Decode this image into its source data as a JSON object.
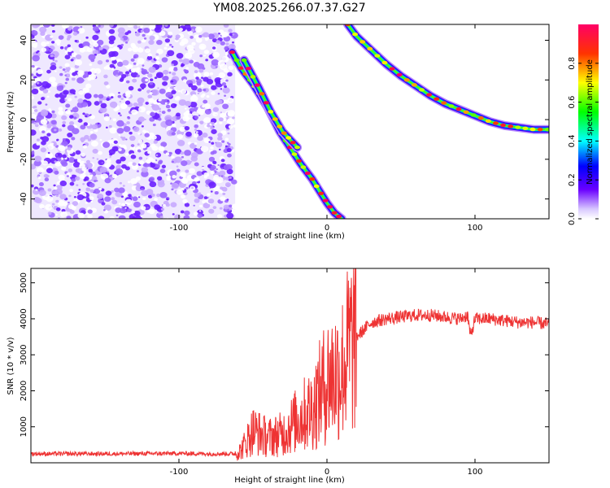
{
  "title": "YM08.2025.266.07.37.G27",
  "chart_data": [
    {
      "type": "heatmap",
      "title": "YM08.2025.266.07.37.G27",
      "xlabel": "Height of straight line (km)",
      "ylabel": "Frequency (Hz)",
      "xlim": [
        -200,
        150
      ],
      "ylim": [
        -50,
        48
      ],
      "xticks": [
        -100,
        0,
        100
      ],
      "yticks": [
        -40,
        -20,
        0,
        20,
        40
      ],
      "colorbar": {
        "label": "Normalized spectral amplitude",
        "range": [
          0,
          1
        ],
        "ticks": [
          "0.0",
          "0.2",
          "0.4",
          "0.6",
          "0.8"
        ]
      },
      "noise_region": {
        "x_start": -200,
        "x_end": -62
      },
      "traces": [
        {
          "points": [
            [
              -64,
              34
            ],
            [
              -58,
              26
            ],
            [
              -50,
              18
            ],
            [
              -40,
              6
            ],
            [
              -32,
              -6
            ],
            [
              -25,
              -14
            ],
            [
              -18,
              -22
            ],
            [
              -10,
              -30
            ],
            [
              -5,
              -36
            ],
            [
              0,
              -42
            ],
            [
              5,
              -47
            ],
            [
              10,
              -50
            ]
          ]
        },
        {
          "points": [
            [
              -56,
              30
            ],
            [
              -46,
              16
            ],
            [
              -38,
              4
            ],
            [
              -30,
              -6
            ],
            [
              -20,
              -14
            ]
          ]
        },
        {
          "points": [
            [
              14,
              48
            ],
            [
              20,
              42
            ],
            [
              30,
              35
            ],
            [
              40,
              28
            ],
            [
              50,
              22
            ],
            [
              60,
              17
            ],
            [
              70,
              12
            ],
            [
              80,
              8
            ],
            [
              90,
              5
            ],
            [
              100,
              2
            ],
            [
              110,
              -1
            ],
            [
              120,
              -3
            ],
            [
              130,
              -4
            ],
            [
              140,
              -5
            ],
            [
              150,
              -5
            ]
          ]
        }
      ]
    },
    {
      "type": "line",
      "xlabel": "Height of straight line (km)",
      "ylabel": "SNR (10 * v/v)",
      "xlim": [
        -200,
        150
      ],
      "ylim": [
        0,
        5400
      ],
      "xticks": [
        -100,
        0,
        100
      ],
      "yticks": [
        1000,
        2000,
        3000,
        4000,
        5000
      ],
      "color": "#ee3333",
      "x": [
        -200,
        -150,
        -100,
        -80,
        -62,
        -58,
        -50,
        -40,
        -30,
        -20,
        -10,
        0,
        10,
        15,
        20,
        30,
        40,
        50,
        60,
        70,
        80,
        90,
        95,
        97,
        100,
        110,
        120,
        130,
        140,
        150
      ],
      "values": [
        250,
        250,
        260,
        250,
        250,
        350,
        900,
        700,
        800,
        1200,
        1500,
        2300,
        2600,
        3200,
        3500,
        3900,
        4000,
        4050,
        4100,
        4100,
        4050,
        4000,
        4100,
        3500,
        4000,
        4000,
        3950,
        3900,
        3900,
        3850
      ]
    }
  ]
}
